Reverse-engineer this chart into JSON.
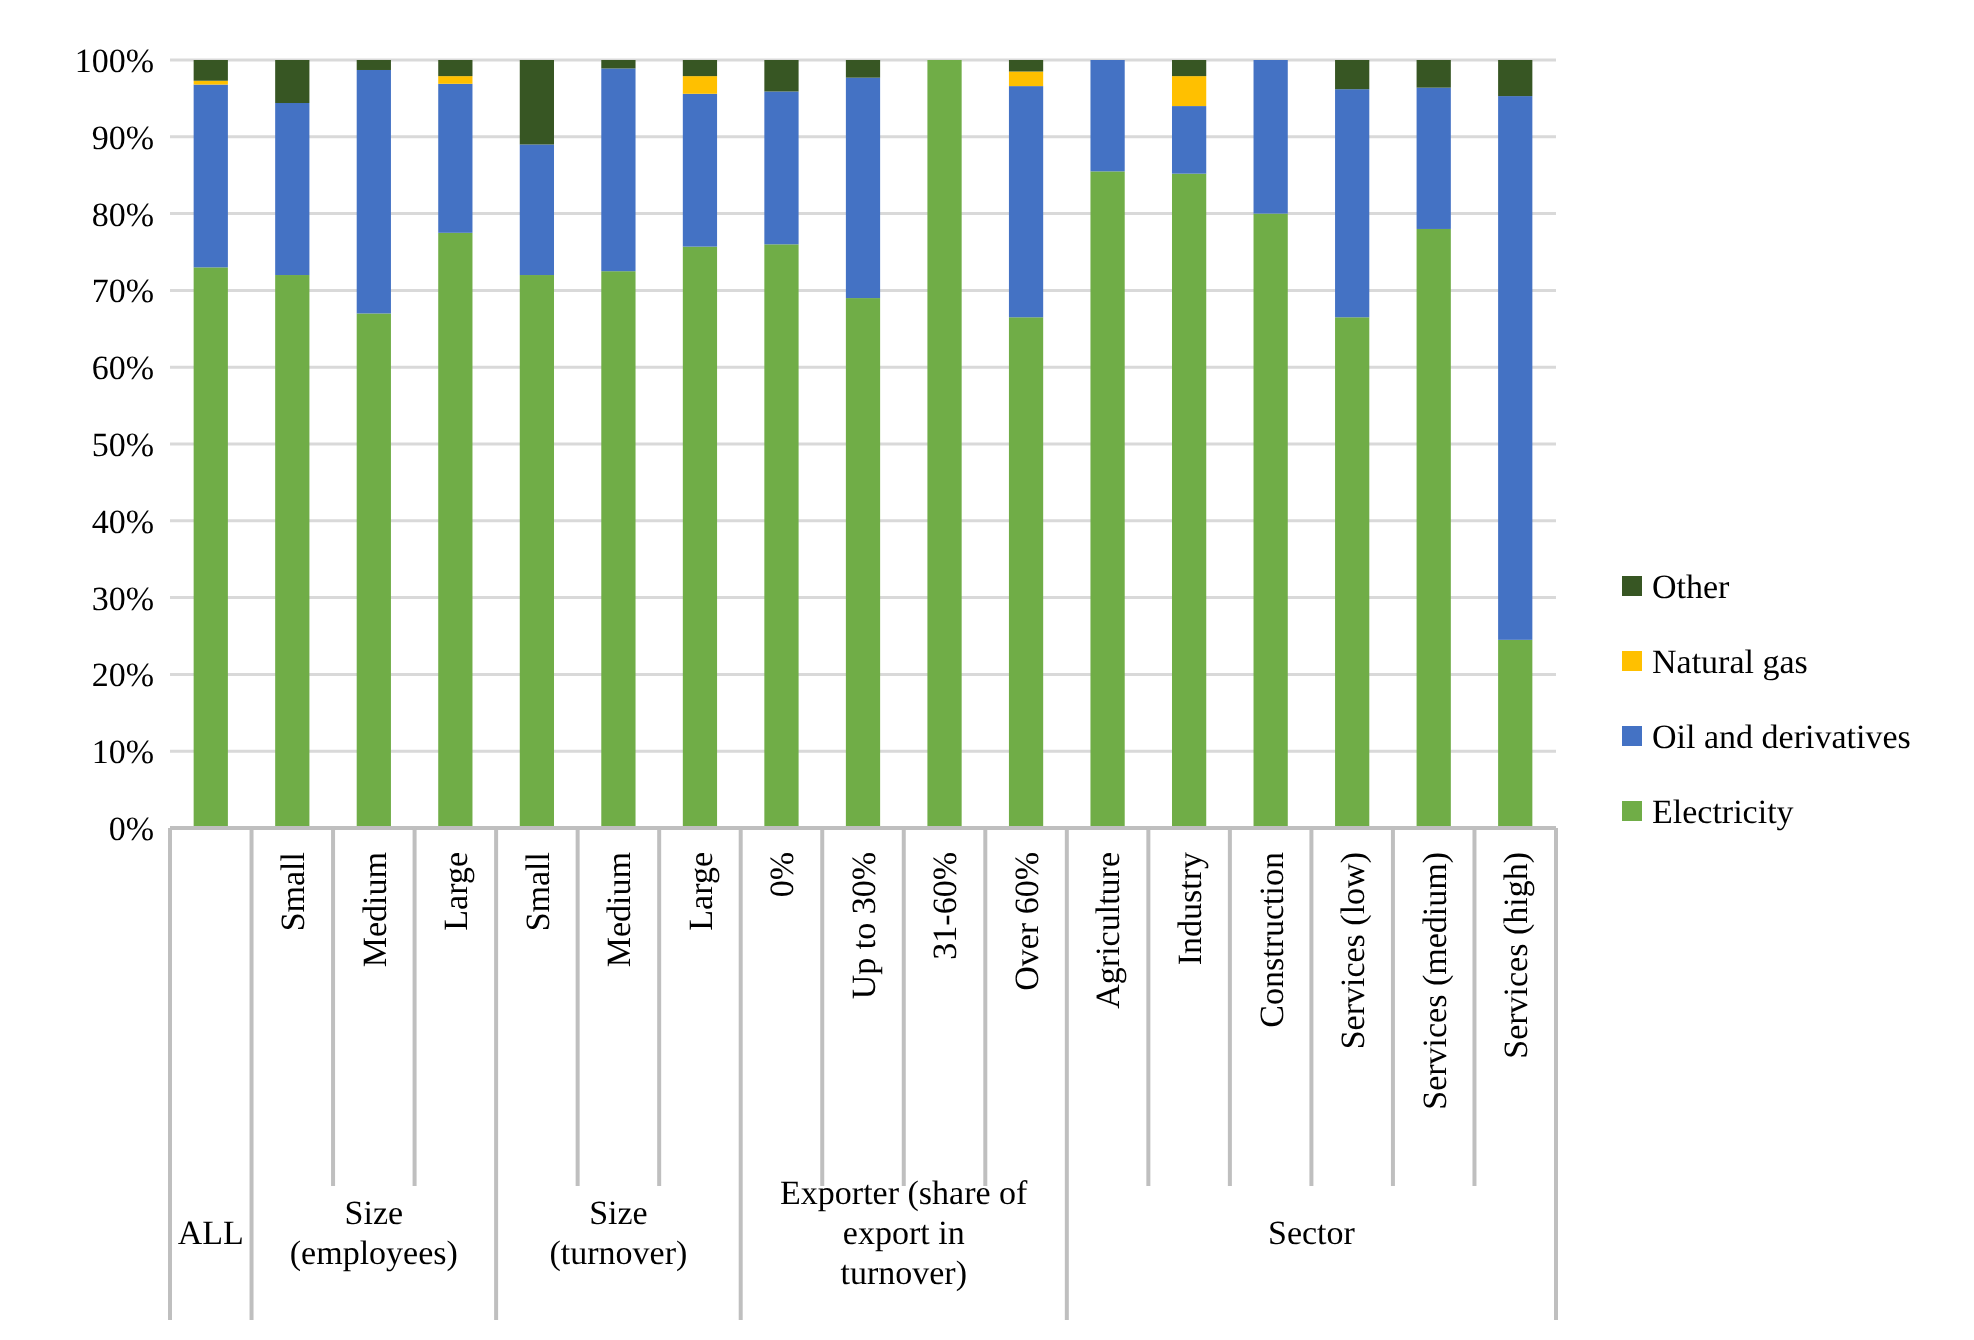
{
  "chart_data": {
    "type": "bar",
    "stacked": true,
    "categories": [
      null,
      "Small",
      "Medium",
      "Large",
      "Small",
      "Medium",
      "Large",
      "0%",
      "Up to 30%",
      "31-60%",
      "Over 60%",
      "Agriculture",
      "Industry",
      "Construction",
      "Services (low)",
      "Services (medium)",
      "Services (high)"
    ],
    "series": [
      {
        "name": "Electricity",
        "color": "#70ad47",
        "values": [
          73,
          72,
          67,
          77.5,
          72,
          72.5,
          75.7,
          76,
          69,
          100,
          66.5,
          85.5,
          85.2,
          80,
          66.5,
          78,
          24.5
        ]
      },
      {
        "name": "Oil and derivatives",
        "color": "#4472c4",
        "values": [
          23.8,
          22.4,
          31.7,
          19.4,
          17,
          26.4,
          19.9,
          19.9,
          28.7,
          0,
          30.1,
          14.5,
          8.8,
          20,
          29.7,
          18.4,
          70.8
        ]
      },
      {
        "name": "Natural gas",
        "color": "#ffc000",
        "values": [
          0.5,
          0,
          0,
          1,
          0,
          0,
          2.3,
          0,
          0,
          0,
          1.9,
          0,
          3.9,
          0,
          0,
          0,
          0
        ]
      },
      {
        "name": "Other",
        "color": "#375623",
        "values": [
          2.7,
          5.6,
          1.3,
          2.1,
          11,
          1.1,
          2.1,
          4.1,
          2.3,
          0,
          1.5,
          0,
          2.1,
          0,
          3.8,
          3.6,
          4.7
        ]
      }
    ],
    "ylim": [
      0,
      100
    ],
    "yticks": [
      {
        "value": 0,
        "label": "0%"
      },
      {
        "value": 10,
        "label": "10%"
      },
      {
        "value": 20,
        "label": "20%"
      },
      {
        "value": 30,
        "label": "30%"
      },
      {
        "value": 40,
        "label": "40%"
      },
      {
        "value": 50,
        "label": "50%"
      },
      {
        "value": 60,
        "label": "60%"
      },
      {
        "value": 70,
        "label": "70%"
      },
      {
        "value": 80,
        "label": "80%"
      },
      {
        "value": 90,
        "label": "90%"
      },
      {
        "value": 100,
        "label": "100%"
      }
    ],
    "grid": "y",
    "legend": "right",
    "annotations": [
      "ALL",
      "Size (employees)",
      "Size (turnover)",
      "Exporter (share of export in turnover)",
      "Sector"
    ]
  }
}
